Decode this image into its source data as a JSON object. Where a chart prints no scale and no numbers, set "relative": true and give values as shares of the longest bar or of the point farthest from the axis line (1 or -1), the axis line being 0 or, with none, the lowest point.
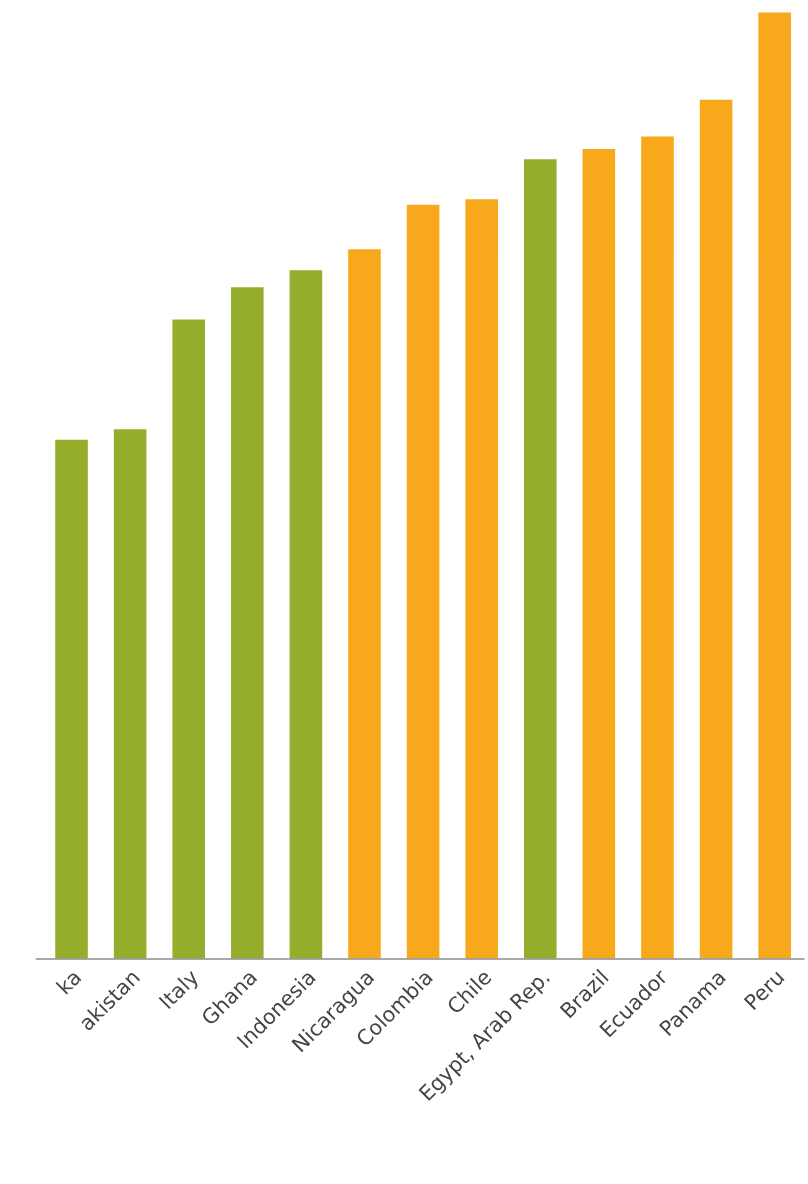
{
  "chart_data": {
    "type": "bar",
    "relative": true,
    "categories": [
      "ka",
      "akistan",
      "Italy",
      "Ghana",
      "Indonesia",
      "Nicaragua",
      "Colombia",
      "Chile",
      "Egypt, Arab Rep.",
      "Brazil",
      "Ecuador",
      "Panama",
      "Peru"
    ],
    "values": [
      0.549,
      0.56,
      0.676,
      0.71,
      0.728,
      0.75,
      0.797,
      0.803,
      0.845,
      0.856,
      0.869,
      0.908,
      1.0
    ],
    "colors": [
      "#94ae2b",
      "#94ae2b",
      "#94ae2b",
      "#94ae2b",
      "#94ae2b",
      "#f7a81b",
      "#f7a81b",
      "#f7a81b",
      "#94ae2b",
      "#f7a81b",
      "#f7a81b",
      "#f7a81b",
      "#f7a81b"
    ],
    "grid": false,
    "legend": false
  }
}
